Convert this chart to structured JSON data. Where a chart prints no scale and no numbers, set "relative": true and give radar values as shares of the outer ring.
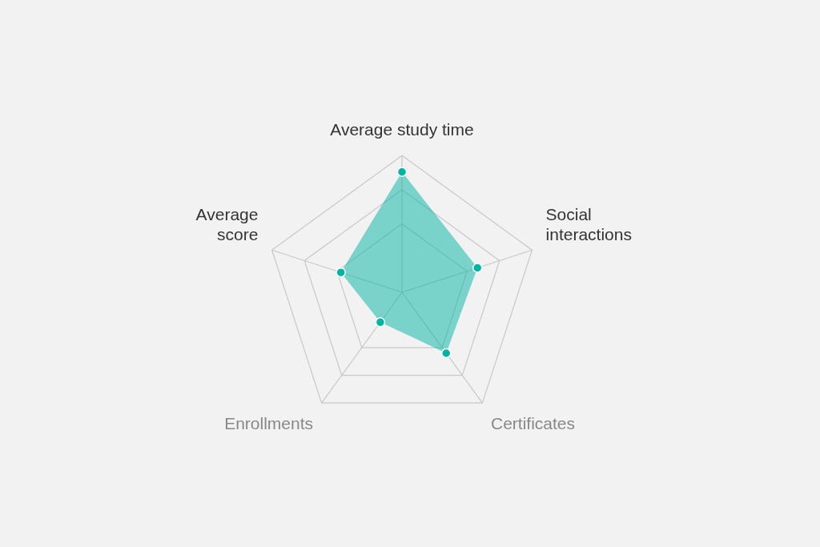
{
  "chart_data": {
    "type": "radar",
    "relative": true,
    "categories": [
      "Average study time",
      "Social interactions",
      "Certificates",
      "Enrollments",
      "Average score"
    ],
    "series": [
      {
        "color": "#00b3a4",
        "values": [
          0.88,
          0.58,
          0.55,
          0.27,
          0.47
        ]
      }
    ],
    "marker": "circle",
    "legend": false
  }
}
